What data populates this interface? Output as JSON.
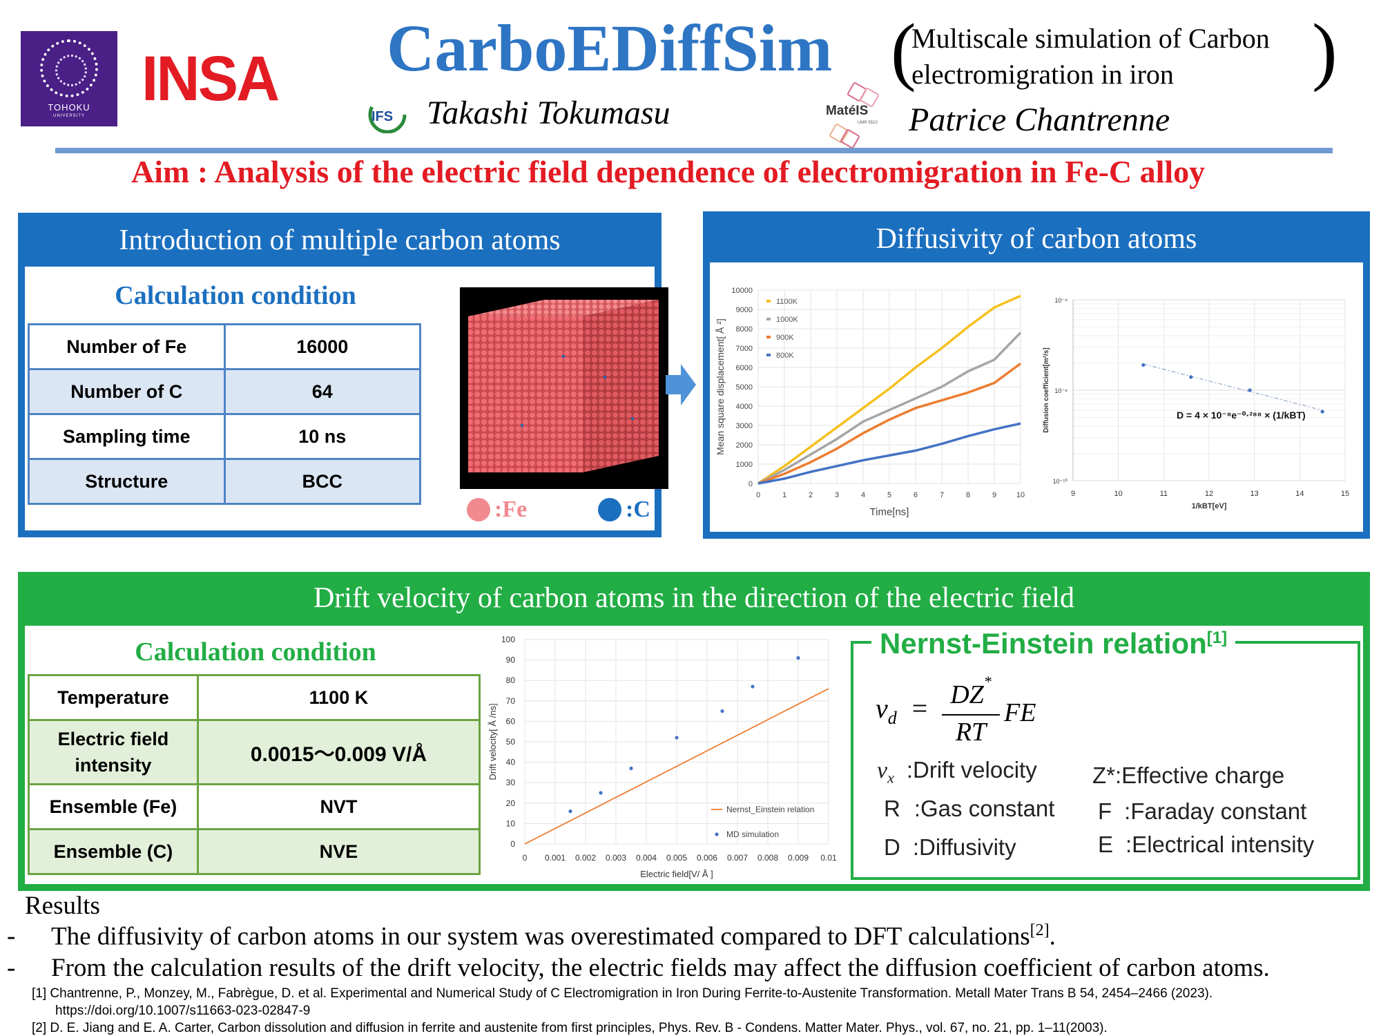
{
  "header": {
    "university_logo_text": "TOHOKU",
    "university_logo_subtext": "UNIVERSITY",
    "insa_logo_text": "INSA",
    "title": "CarboEDiffSim",
    "subtitle_line1": "Multiscale simulation of Carbon",
    "subtitle_line2": "electromigration in iron",
    "ifs_logo_text": "IFS",
    "author1": "Takashi Tokumasu",
    "mateis_logo_text": "MatéIS",
    "mateis_logo_small": "UMR 5510",
    "author2": "Patrice Chantrenne",
    "aim": "Aim : Analysis of the electric field dependence of electromigration in Fe-C alloy"
  },
  "intro_panel": {
    "title": "Introduction of multiple carbon atoms",
    "heading": "Calculation condition",
    "rows": [
      {
        "label": "Number of Fe",
        "value": "16000"
      },
      {
        "label": "Number of C",
        "value": "64"
      },
      {
        "label": "Sampling time",
        "value": "10 ns"
      },
      {
        "label": "Structure",
        "value": "BCC"
      }
    ],
    "legend_fe": ":Fe",
    "legend_c": ":C",
    "colors": {
      "fe": "#e8595f",
      "c": "#1b6fbf"
    }
  },
  "diffusivity_panel": {
    "title": "Diffusivity of carbon atoms"
  },
  "drift_panel": {
    "title": "Drift velocity of carbon atoms in the direction of the electric field",
    "heading": "Calculation condition",
    "rows": [
      {
        "label": "Temperature",
        "value": "1100 K"
      },
      {
        "label": "Electric field intensity",
        "value": "0.0015～0.009 V/Å"
      },
      {
        "label": "Ensemble (Fe)",
        "value": "NVT"
      },
      {
        "label": "Ensemble (C)",
        "value": "NVE"
      }
    ]
  },
  "nernst": {
    "title": "Nernst-Einstein relation",
    "title_ref": "[1]",
    "eq_lhs": "v",
    "eq_lhs_sub": "d",
    "eq_num": "DZ",
    "eq_num_sup": "*",
    "eq_den": "RT",
    "eq_rhs": "FE",
    "defs": [
      {
        "sym": "v",
        "sub": "x",
        "text": ":Drift velocity"
      },
      {
        "sym": "R",
        "sub": "",
        "text": ":Gas constant"
      },
      {
        "sym": "D",
        "sub": "",
        "text": ":Diffusivity"
      },
      {
        "sym": "Z*",
        "sub": "",
        "text": ":Effective charge"
      },
      {
        "sym": "F",
        "sub": "",
        "text": ":Faraday constant"
      },
      {
        "sym": "E",
        "sub": "",
        "text": ":Electrical intensity"
      }
    ]
  },
  "results": {
    "heading": "Results",
    "bullet1": "The diffusivity of carbon atoms in our system was overestimated compared to DFT calculations",
    "bullet1_ref": "[2]",
    "bullet1_end": ".",
    "bullet2": "From the calculation results of the drift velocity, the electric fields may affect the diffusion coefficient of carbon atoms.",
    "dash": "-"
  },
  "references": {
    "ref1_line1": "[1] Chantrenne, P., Monzey, M., Fabrègue, D. et al. Experimental and Numerical Study of C Electromigration in Iron During Ferrite-to-Austenite Transformation. Metall Mater Trans B 54, 2454–2466 (2023).",
    "ref1_line2": "https://doi.org/10.1007/s11663-023-02847-9",
    "ref2": "[2] D. E. Jiang and E. A. Carter, Carbon dissolution and diffusion in ferrite and austenite from first principles, Phys. Rev. B - Condens. Matter Mater. Phys., vol. 67, no. 21, pp. 1–11(2003)."
  },
  "chart_data": [
    {
      "type": "line",
      "xlabel": "Time[ns]",
      "ylabel": "Mean square displacement[ Å ²]",
      "xlim": [
        0,
        10
      ],
      "ylim": [
        0,
        10000
      ],
      "xticks": [
        "0",
        "1",
        "2",
        "3",
        "4",
        "5",
        "6",
        "7",
        "8",
        "9",
        "10"
      ],
      "yticks": [
        "0",
        "1000",
        "2000",
        "3000",
        "4000",
        "5000",
        "6000",
        "7000",
        "8000",
        "9000",
        "10000"
      ],
      "grid": true,
      "legend_position": "top-left",
      "series": [
        {
          "name": "1100K",
          "color": "#f5c01e",
          "x": [
            0,
            1,
            2,
            3,
            4,
            5,
            6,
            7,
            8,
            9,
            10
          ],
          "y": [
            0,
            900,
            1900,
            2900,
            3900,
            4900,
            6000,
            7000,
            8100,
            9100,
            9700
          ]
        },
        {
          "name": "1000K",
          "color": "#a5a5a5",
          "x": [
            0,
            1,
            2,
            3,
            4,
            5,
            6,
            7,
            8,
            9,
            10
          ],
          "y": [
            0,
            700,
            1500,
            2300,
            3200,
            3800,
            4400,
            5000,
            5800,
            6400,
            7800
          ]
        },
        {
          "name": "900K",
          "color": "#ed7d31",
          "x": [
            0,
            1,
            2,
            3,
            4,
            5,
            6,
            7,
            8,
            9,
            10
          ],
          "y": [
            0,
            500,
            1100,
            1800,
            2600,
            3300,
            3900,
            4300,
            4700,
            5200,
            6200
          ]
        },
        {
          "name": "800K",
          "color": "#4472c4",
          "x": [
            0,
            1,
            2,
            3,
            4,
            5,
            6,
            7,
            8,
            9,
            10
          ],
          "y": [
            0,
            250,
            600,
            900,
            1200,
            1450,
            1700,
            2050,
            2450,
            2800,
            3100
          ]
        }
      ]
    },
    {
      "type": "scatter",
      "xlabel": "1/kBT[eV]",
      "ylabel": "Diffusion coefficient[m²/s]",
      "xlim": [
        9,
        15
      ],
      "y_scale": "log",
      "ylim": [
        1e-10,
        1e-08
      ],
      "xticks": [
        "9",
        "10",
        "11",
        "12",
        "13",
        "14",
        "15"
      ],
      "yticks": [
        "10⁻¹⁰",
        "10⁻⁹",
        "10⁻⁸"
      ],
      "grid": true,
      "annotation": "D = 4 × 10⁻⁸e⁻⁰·²⁸⁸ × (1/kBT)",
      "series": [
        {
          "color": "#4472c4",
          "x": [
            10.55,
            11.6,
            12.9,
            14.5
          ],
          "y": [
            1.9e-09,
            1.4e-09,
            1e-09,
            5.8e-10
          ]
        }
      ],
      "trendline": {
        "x": [
          10.55,
          14.5
        ],
        "y": [
          1.95e-09,
          6e-10
        ]
      }
    },
    {
      "type": "scatter",
      "xlabel": "Electric field[V/ Å ]",
      "ylabel": "Drift velocity[ Å /ns]",
      "xlim": [
        0,
        0.01
      ],
      "ylim": [
        0,
        100
      ],
      "xticks": [
        "0",
        "0.001",
        "0.002",
        "0.003",
        "0.004",
        "0.005",
        "0.006",
        "0.007",
        "0.008",
        "0.009",
        "0.01"
      ],
      "yticks": [
        "0",
        "10",
        "20",
        "30",
        "40",
        "50",
        "60",
        "70",
        "80",
        "90",
        "100"
      ],
      "grid": true,
      "legend_position": "bottom-right",
      "series": [
        {
          "name": "Nernst_Einstein relation",
          "type": "line",
          "color": "#ed7d31",
          "x": [
            0,
            0.01
          ],
          "y": [
            0,
            76
          ]
        },
        {
          "name": "MD simulation",
          "type": "scatter",
          "color": "#4472c4",
          "x": [
            0.0015,
            0.0025,
            0.0035,
            0.005,
            0.0065,
            0.0075,
            0.009
          ],
          "y": [
            16,
            25,
            37,
            52,
            65,
            77,
            91
          ]
        }
      ]
    }
  ]
}
